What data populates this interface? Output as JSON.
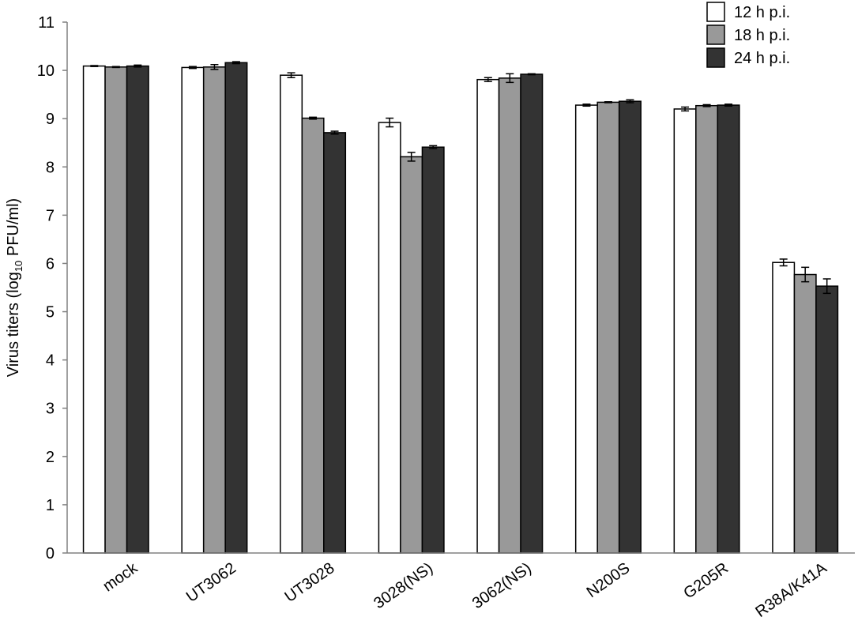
{
  "chart_data": {
    "type": "bar",
    "title": "",
    "xlabel": "",
    "ylabel": {
      "prefix": "Virus titers (log",
      "subscript": "10",
      "suffix": " PFU/ml)"
    },
    "ylim": [
      0,
      11
    ],
    "yticks": [
      "0",
      "1",
      "2",
      "3",
      "4",
      "5",
      "6",
      "7",
      "8",
      "9",
      "10",
      "11"
    ],
    "grid": false,
    "legend_position": "top-right",
    "categories": [
      "mock",
      "UT3062",
      "UT3028",
      "3028(NS)",
      "3062(NS)",
      "N200S",
      "G205R",
      "R38A/K41A"
    ],
    "series": [
      {
        "name": "12 h p.i.",
        "color": "#ffffff",
        "values": [
          10.09,
          10.06,
          9.9,
          8.92,
          9.81,
          9.28,
          9.2,
          6.02
        ],
        "errors": [
          0.01,
          0.02,
          0.05,
          0.09,
          0.04,
          0.02,
          0.04,
          0.07
        ]
      },
      {
        "name": "18 h p.i.",
        "color": "#999999",
        "values": [
          10.07,
          10.07,
          9.01,
          8.21,
          9.84,
          9.34,
          9.27,
          5.77
        ],
        "errors": [
          0.01,
          0.05,
          0.02,
          0.09,
          0.09,
          0.01,
          0.02,
          0.15
        ]
      },
      {
        "name": "24 h p.i.",
        "color": "#333333",
        "values": [
          10.09,
          10.16,
          8.71,
          8.41,
          9.92,
          9.36,
          9.28,
          5.53
        ],
        "errors": [
          0.02,
          0.02,
          0.03,
          0.03,
          0.01,
          0.03,
          0.02,
          0.15
        ]
      }
    ]
  }
}
